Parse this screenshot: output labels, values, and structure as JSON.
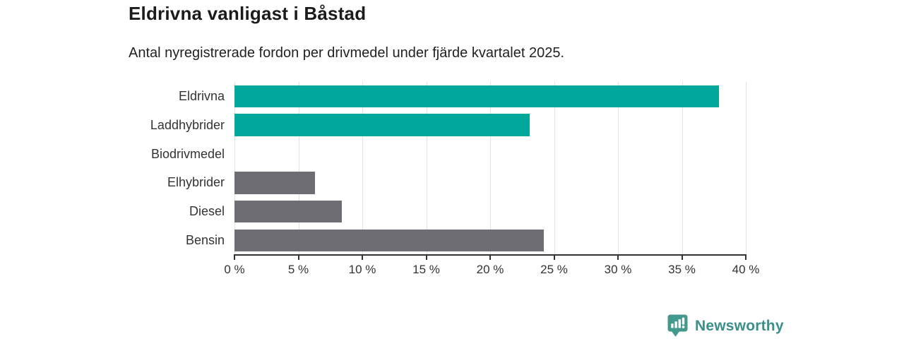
{
  "header": {
    "title": "Eldrivna vanligast i Båstad",
    "subtitle": "Antal nyregistrerade fordon per drivmedel under fjärde kvartalet 2025."
  },
  "chart_data": {
    "type": "bar",
    "orientation": "horizontal",
    "title": "Eldrivna vanligast i Båstad",
    "subtitle": "Antal nyregistrerade fordon per drivmedel under fjärde kvartalet 2025.",
    "categories": [
      "Eldrivna",
      "Laddhybrider",
      "Biodrivmedel",
      "Elhybrider",
      "Diesel",
      "Bensin"
    ],
    "values": [
      37.9,
      23.1,
      0,
      6.3,
      8.4,
      24.2
    ],
    "unit": "%",
    "xlabel": "",
    "ylabel": "",
    "xlim": [
      0,
      40
    ],
    "tick_step": 5,
    "tick_labels": [
      "0 %",
      "5 %",
      "10 %",
      "15 %",
      "20 %",
      "25 %",
      "30 %",
      "35 %",
      "40 %"
    ],
    "bar_colors": [
      "#00a79a",
      "#00a79a",
      "#6d6d73",
      "#6d6d73",
      "#6d6d73",
      "#6d6d73"
    ],
    "grid": true,
    "legend": "none"
  },
  "colors": {
    "accent_teal": "#00a79a",
    "bar_gray": "#6d6d73",
    "axis": "#333333",
    "gridline": "#e2e2e2",
    "logo_teal": "#3a8f8b",
    "logo_icon_teal": "#44998f"
  },
  "branding": {
    "logo_text": "Newsworthy",
    "logo_icon": "barchart-pin-icon"
  }
}
